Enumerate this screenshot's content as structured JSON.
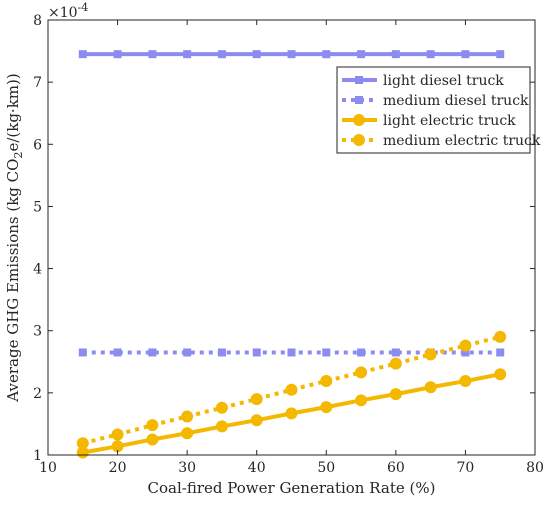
{
  "chart_data": {
    "type": "line",
    "title": "",
    "xlabel": "Coal-fired Power Generation Rate (%)",
    "ylabel_main": "Average GHG Emissions (kg CO",
    "ylabel_sub": "2",
    "ylabel_end": "e/(kg·km))",
    "y_multiplier_base": "×10",
    "y_multiplier_exp": "-4",
    "xlim": [
      10,
      80
    ],
    "ylim": [
      1,
      8
    ],
    "xticks": [
      10,
      20,
      30,
      40,
      50,
      60,
      70,
      80
    ],
    "yticks": [
      1,
      2,
      3,
      4,
      5,
      6,
      7,
      8
    ],
    "grid": false,
    "legend_position": "top-right",
    "x": [
      15,
      20,
      25,
      30,
      35,
      40,
      45,
      50,
      55,
      60,
      65,
      70,
      75
    ],
    "series": [
      {
        "name": "light diesel truck",
        "values": [
          7.45,
          7.45,
          7.45,
          7.45,
          7.45,
          7.45,
          7.45,
          7.45,
          7.45,
          7.45,
          7.45,
          7.45,
          7.45
        ],
        "color": "#8c8cf0",
        "marker": "square",
        "dash": "solid"
      },
      {
        "name": "medium diesel truck",
        "values": [
          2.65,
          2.65,
          2.65,
          2.65,
          2.65,
          2.65,
          2.65,
          2.65,
          2.65,
          2.65,
          2.65,
          2.65,
          2.65
        ],
        "color": "#8c8cf0",
        "marker": "square",
        "dash": "dotted"
      },
      {
        "name": "light electric truck",
        "values": [
          1.04,
          1.14,
          1.25,
          1.35,
          1.46,
          1.56,
          1.67,
          1.77,
          1.88,
          1.98,
          2.09,
          2.19,
          2.3
        ],
        "color": "#f5b800",
        "marker": "circle",
        "dash": "solid"
      },
      {
        "name": "medium electric truck",
        "values": [
          1.19,
          1.33,
          1.48,
          1.62,
          1.76,
          1.9,
          2.05,
          2.19,
          2.33,
          2.47,
          2.62,
          2.76,
          2.9
        ],
        "color": "#f5b800",
        "marker": "circle",
        "dash": "dotted"
      }
    ]
  }
}
